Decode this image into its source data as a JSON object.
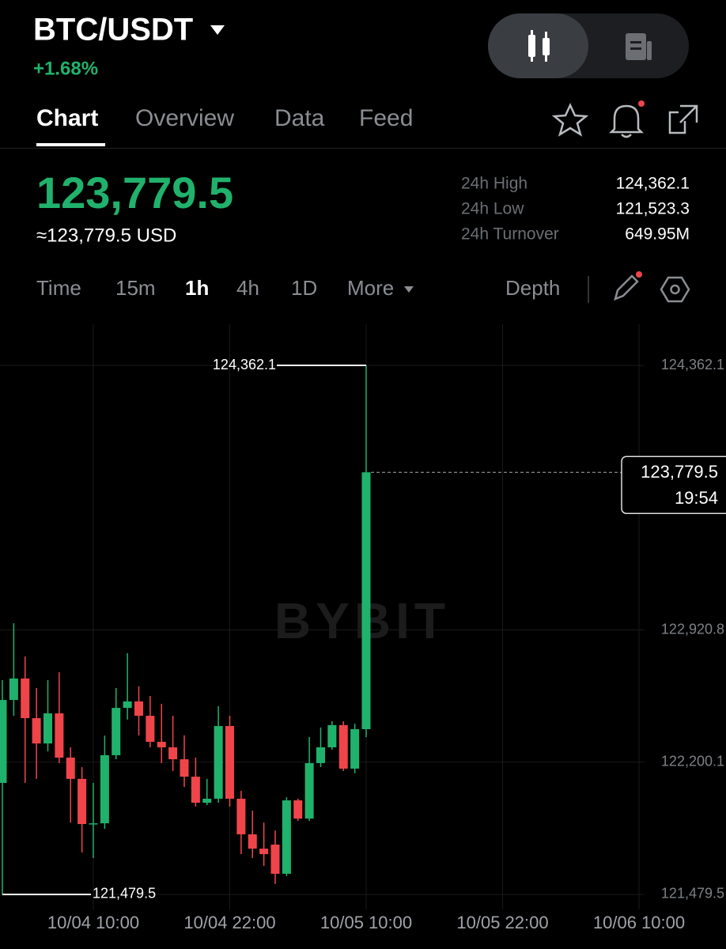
{
  "header": {
    "pair": "BTC/USDT",
    "change": "+1.68%"
  },
  "tabs": [
    "Chart",
    "Overview",
    "Data",
    "Feed"
  ],
  "price": {
    "last": "123,779.5",
    "usd": "≈123,779.5 USD"
  },
  "stats": [
    {
      "label": "24h High",
      "value": "124,362.1"
    },
    {
      "label": "24h Low",
      "value": "121,523.3"
    },
    {
      "label": "24h Turnover",
      "value": "649.95M"
    }
  ],
  "intervals": [
    "Time",
    "15m",
    "1h",
    "4h",
    "1D",
    "More"
  ],
  "depth": "Depth",
  "chart_data": {
    "type": "candlestick",
    "watermark": "BYBIT",
    "up_color": "#20b26c",
    "down_color": "#ef454a",
    "grid": true,
    "categories": [
      null,
      null,
      null,
      null,
      null,
      null,
      null,
      null,
      "10/04 10:00",
      null,
      null,
      null,
      null,
      null,
      null,
      null,
      null,
      null,
      null,
      null,
      "10/04 22:00",
      null,
      null,
      null,
      null,
      null,
      null,
      null,
      null,
      null,
      null,
      null,
      "10/05 10:00",
      null,
      null,
      null,
      null,
      null,
      null,
      null,
      null,
      null,
      null,
      null,
      "10/05 22:00",
      null,
      null,
      null,
      null,
      null,
      null,
      null,
      null,
      null,
      null,
      null,
      "10/06 10:00"
    ],
    "open": [
      122087,
      122539,
      122656,
      122440,
      122302,
      122466,
      122225,
      122109,
      121863,
      121867,
      122238,
      122496,
      122531,
      122453,
      122311,
      122281,
      122216,
      122121,
      121979,
      122001,
      122397,
      122001,
      121807,
      121729,
      121751,
      121592,
      121992,
      121893,
      122195,
      122281,
      122402,
      122165,
      122380,
      null,
      null,
      null,
      null,
      null,
      null,
      null,
      null,
      null,
      null,
      null,
      null,
      null,
      null,
      null,
      null,
      null,
      null,
      null,
      null,
      null,
      null,
      null,
      null
    ],
    "high": [
      122647,
      122957,
      122776,
      122604,
      122647,
      122690,
      122281,
      122173,
      122087,
      122345,
      122604,
      122794,
      122613,
      122561,
      122518,
      122453,
      122346,
      122225,
      122109,
      122505,
      122453,
      122044,
      121936,
      121871,
      121828,
      122009,
      122001,
      122337,
      122389,
      122423,
      122423,
      122410,
      124362.1,
      null,
      null,
      null,
      null,
      null,
      null,
      null,
      null,
      null,
      null,
      null,
      null,
      null,
      null,
      null,
      null,
      null,
      null,
      null,
      null,
      null,
      null,
      null,
      null
    ],
    "low": [
      121479.5,
      122453,
      122087,
      122109,
      122259,
      122195,
      121871,
      121708,
      121678,
      121837,
      122216,
      122432,
      122346,
      122281,
      122195,
      122152,
      122065,
      121958,
      121966,
      121979,
      121958,
      121699,
      121678,
      121635,
      121536,
      121579,
      121880,
      121880,
      122173,
      122268,
      122152,
      122139,
      122337,
      null,
      null,
      null,
      null,
      null,
      null,
      null,
      null,
      null,
      null,
      null,
      null,
      null,
      null,
      null,
      null,
      null,
      null,
      null,
      null,
      null,
      null,
      null,
      null
    ],
    "close": [
      122539,
      122656,
      122440,
      122302,
      122466,
      122225,
      122109,
      121863,
      121867,
      122238,
      122496,
      122531,
      122453,
      122311,
      122281,
      122216,
      122121,
      121979,
      122001,
      122397,
      122001,
      121807,
      121729,
      121699,
      121592,
      121992,
      121893,
      122195,
      122281,
      122402,
      122165,
      122380,
      123779.5,
      null,
      null,
      null,
      null,
      null,
      null,
      null,
      null,
      null,
      null,
      null,
      null,
      null,
      null,
      null,
      null,
      null,
      null,
      null,
      null,
      null,
      null,
      null,
      null
    ],
    "ylim": [
      121397.6,
      124586.2
    ],
    "yticks": [
      {
        "value": 124362.1,
        "label": "124,362.1"
      },
      {
        "value": 122920.8,
        "label": "122,920.8"
      },
      {
        "value": 122200.1,
        "label": "122,200.1"
      },
      {
        "value": 121479.5,
        "label": "121,479.5"
      }
    ],
    "high_label": "124,362.1",
    "low_label": "121,479.5",
    "last_label": "123,779.5",
    "countdown": "19:54"
  }
}
